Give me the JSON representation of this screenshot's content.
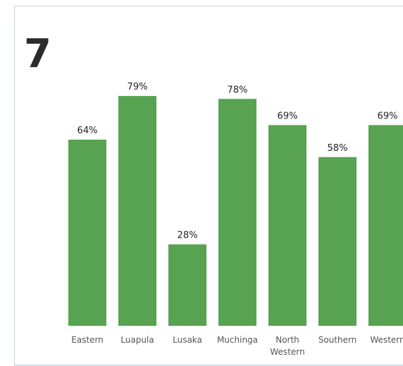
{
  "panel_number": "7",
  "colors": {
    "bar": "#57a351",
    "frame_border": "#c9d3de"
  },
  "chart_data": {
    "type": "bar",
    "categories": [
      "Eastern",
      "Luapula",
      "Lusaka",
      "Muchinga",
      "North Western",
      "Southern",
      "Western"
    ],
    "category_lines": [
      [
        "Eastern"
      ],
      [
        "Luapula"
      ],
      [
        "Lusaka"
      ],
      [
        "Muchinga"
      ],
      [
        "North",
        "Western"
      ],
      [
        "Southern"
      ],
      [
        "Western"
      ]
    ],
    "values": [
      64,
      79,
      28,
      78,
      69,
      58,
      69
    ],
    "value_labels": [
      "64%",
      "79%",
      "28%",
      "78%",
      "69%",
      "58%",
      "69%"
    ],
    "ylim": [
      0,
      100
    ],
    "grid": false,
    "legend": "none"
  }
}
